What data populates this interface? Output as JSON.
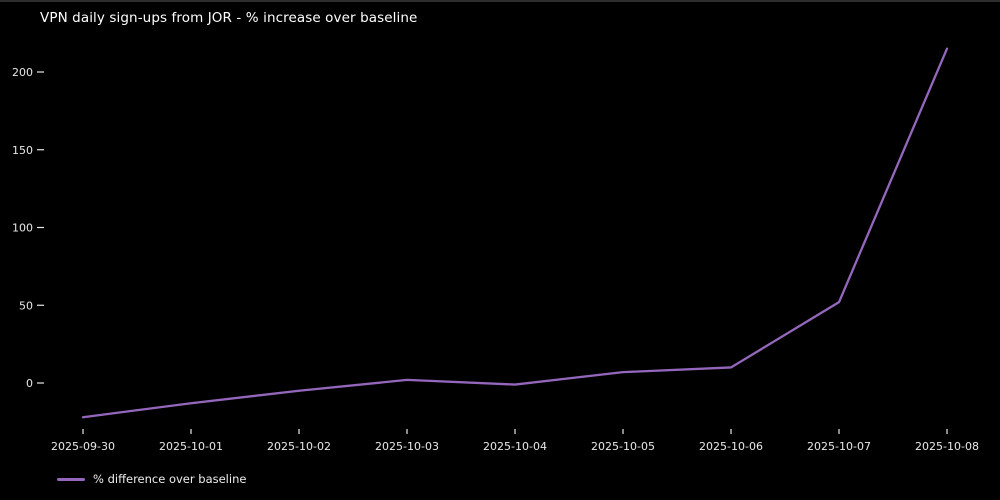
{
  "title": "VPN daily sign-ups from JOR - % increase over baseline",
  "legend": {
    "label": "% difference over baseline",
    "swatch_color": "#9467bd"
  },
  "colors": {
    "background": "#000000",
    "text": "#ffffff",
    "tick_text": "#e8e8e8",
    "line": "#9467bd"
  },
  "chart_data": {
    "type": "line",
    "title": "VPN daily sign-ups from JOR - % increase over baseline",
    "x": [
      "2025-09-30",
      "2025-10-01",
      "2025-10-02",
      "2025-10-03",
      "2025-10-04",
      "2025-10-05",
      "2025-10-06",
      "2025-10-07",
      "2025-10-08"
    ],
    "series": [
      {
        "name": "% difference over baseline",
        "values": [
          -22,
          -13,
          -5,
          2,
          -1,
          7,
          10,
          52,
          215
        ],
        "color": "#9467bd"
      }
    ],
    "xlabel": "",
    "ylabel": "",
    "yticks": [
      0,
      50,
      100,
      150,
      200
    ],
    "ylim": [
      -35,
      230
    ],
    "grid": false,
    "legend_position": "lower-left",
    "plot_style": "dark_background"
  }
}
